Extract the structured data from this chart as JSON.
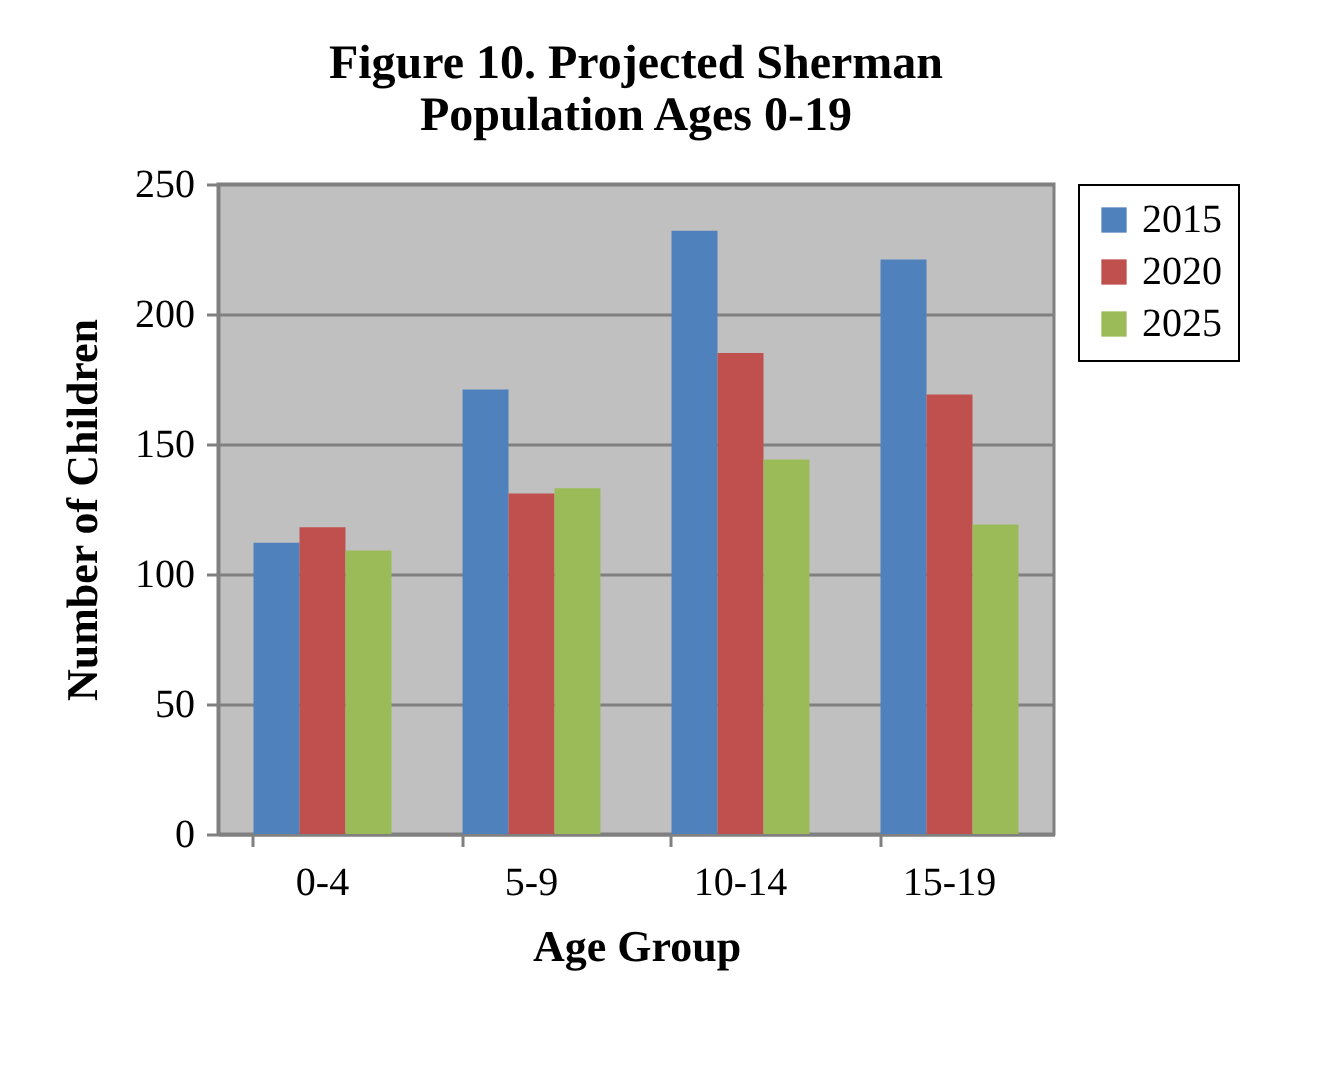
{
  "chart_data": {
    "type": "bar",
    "title": "Figure 10. Projected Sherman Population Ages 0-19",
    "xlabel": "Age Group",
    "ylabel": "Number of Children",
    "categories": [
      "0-4",
      "5-9",
      "10-14",
      "15-19"
    ],
    "series": [
      {
        "name": "2015",
        "color": "#4f81bd",
        "values": [
          112,
          171,
          232,
          221
        ]
      },
      {
        "name": "2020",
        "color": "#c0504d",
        "values": [
          118,
          131,
          185,
          169
        ]
      },
      {
        "name": "2025",
        "color": "#9bbb59",
        "values": [
          109,
          133,
          144,
          119
        ]
      }
    ],
    "ylim": [
      0,
      250
    ],
    "yticks": [
      0,
      50,
      100,
      150,
      200,
      250
    ],
    "grid": "y",
    "legend": "right"
  }
}
